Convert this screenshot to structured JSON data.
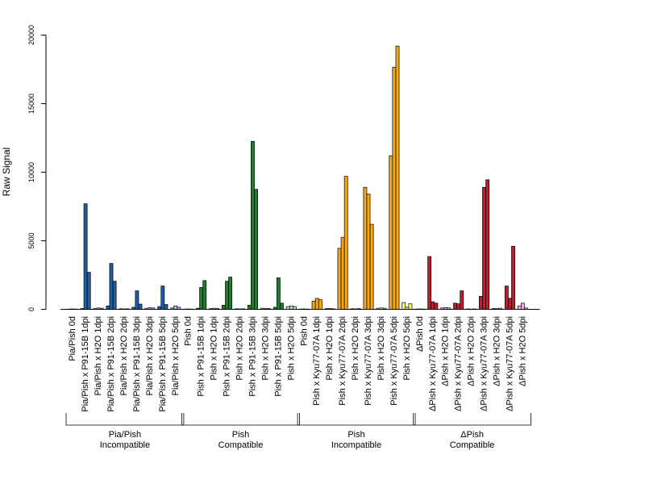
{
  "chart_data": {
    "type": "bar",
    "ylabel": "Raw Signal",
    "ylim": [
      0,
      20000
    ],
    "yticks": [
      0,
      5000,
      10000,
      15000,
      20000
    ],
    "categories": [
      "Pia/Pish 0d",
      "Pia/Pish x P91-15B 1dpi",
      "Pia/Pish x H2O 1dpi",
      "Pia/Pish x P91-15B 2dpi",
      "Pia/Pish x H2O 2dpi",
      "Pia/Pish x P91-15B 3dpi",
      "Pia/Pish x H2O 3dpi",
      "Pia/Pish x P91-15B 5dpi",
      "Pia/Pish x H2O 5dpi",
      "Pish 0d",
      "Pish x P91-15B 1dpi",
      "Pish x H2O 1dpi",
      "Pish x P91-15B 2dpi",
      "Pish x H2O 2dpi",
      "Pish x P91-15B 3dpi",
      "Pish x H2O 3dpi",
      "Pish x P91-15B 5dpi",
      "Pish x H2O 5dpi",
      "Pish 0d",
      "Pish x Kyu77-07A 1dpi",
      "Pish x H2O 1dpi",
      "Pish x Kyu77-07A 2dpi",
      "Pish x H2O 2dpi",
      "Pish x Kyu77-07A 3dpi",
      "Pish x H2O 3dpi",
      "Pish x Kyu77-07A 5dpi",
      "Pish x H2O 5dpi",
      "ΔPish 0d",
      "ΔPish x Kyu77-07A 1dpi",
      "ΔPish x H2O 1dpi",
      "ΔPish x Kyu77-07A 2dpi",
      "ΔPish x H2O 2dpi",
      "ΔPish x Kyu77-07A 3dpi",
      "ΔPish x H2O 3dpi",
      "ΔPish x Kyu77-07A 5dpi",
      "ΔPish x H2O 5dpi"
    ],
    "values": [
      [
        20,
        30,
        20
      ],
      [
        60,
        7700,
        2700
      ],
      [
        60,
        100,
        80
      ],
      [
        250,
        3350,
        2050
      ],
      [
        40,
        30,
        40
      ],
      [
        150,
        1350,
        380
      ],
      [
        80,
        120,
        100
      ],
      [
        200,
        1700,
        350
      ],
      [
        100,
        250,
        150
      ],
      [
        20,
        30,
        20
      ],
      [
        80,
        1600,
        2100
      ],
      [
        50,
        80,
        60
      ],
      [
        300,
        2050,
        2350
      ],
      [
        40,
        30,
        40
      ],
      [
        300,
        12250,
        8750
      ],
      [
        80,
        60,
        50
      ],
      [
        150,
        2300,
        450
      ],
      [
        200,
        250,
        200
      ],
      [
        20,
        30,
        20
      ],
      [
        600,
        800,
        700
      ],
      [
        50,
        60,
        40
      ],
      [
        4450,
        5250,
        9700
      ],
      [
        40,
        30,
        50
      ],
      [
        8900,
        8400,
        6200
      ],
      [
        80,
        100,
        80
      ],
      [
        11200,
        17650,
        19200
      ],
      [
        500,
        150,
        400
      ],
      [
        20,
        30,
        20
      ],
      [
        3850,
        550,
        450
      ],
      [
        100,
        120,
        100
      ],
      [
        450,
        400,
        1350
      ],
      [
        30,
        20,
        30
      ],
      [
        950,
        8900,
        9450
      ],
      [
        60,
        50,
        80
      ],
      [
        1700,
        800,
        4600
      ],
      [
        250,
        450,
        100
      ]
    ],
    "group_colors": [
      "#1f5fa3",
      "#247a35",
      "#f5a716",
      "#d4142a"
    ],
    "h2o_colors": [
      "#a8bde6",
      "#b8e2ba",
      "#fdf470",
      "#f5a8f0"
    ],
    "groups": [
      {
        "name": "Pia/Pish",
        "subtitle": "Incompatible",
        "start": 0,
        "end": 8
      },
      {
        "name": "Pish",
        "subtitle": "Compatible",
        "start": 9,
        "end": 17
      },
      {
        "name": "Pish",
        "subtitle": "Incompatible",
        "start": 18,
        "end": 26
      },
      {
        "name": "ΔPish",
        "subtitle": "Compatible",
        "start": 27,
        "end": 35
      }
    ]
  }
}
